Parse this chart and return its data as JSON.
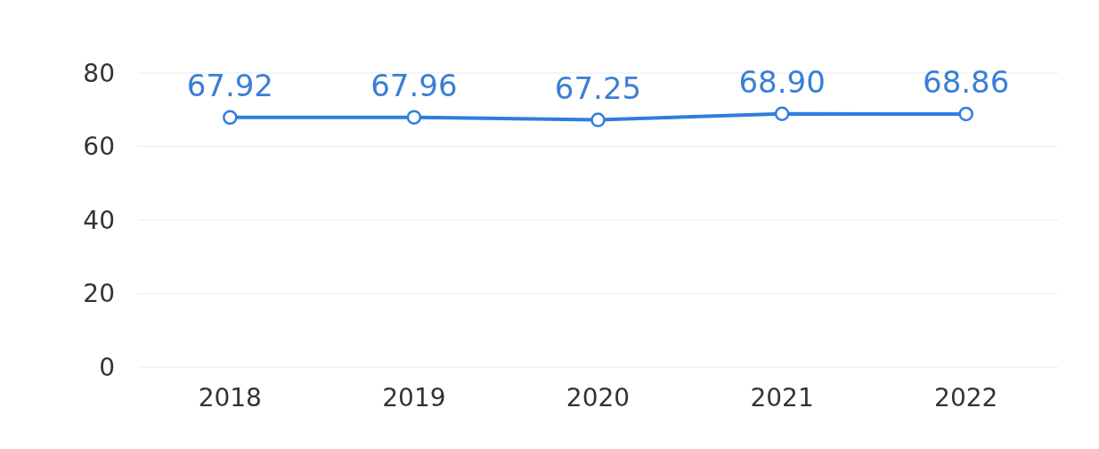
{
  "chart_data": {
    "type": "line",
    "categories": [
      "2018",
      "2019",
      "2020",
      "2021",
      "2022"
    ],
    "series": [
      {
        "color": "#2f7de1",
        "values": [
          67.92,
          67.96,
          67.25,
          68.9,
          68.86
        ]
      }
    ],
    "value_labels": [
      "67.92",
      "67.96",
      "67.25",
      "68.90",
      "68.86"
    ],
    "ylim": [
      0,
      80
    ],
    "yticks": [
      0,
      20,
      40,
      60,
      80
    ],
    "grid": "y",
    "marker": "circle"
  }
}
